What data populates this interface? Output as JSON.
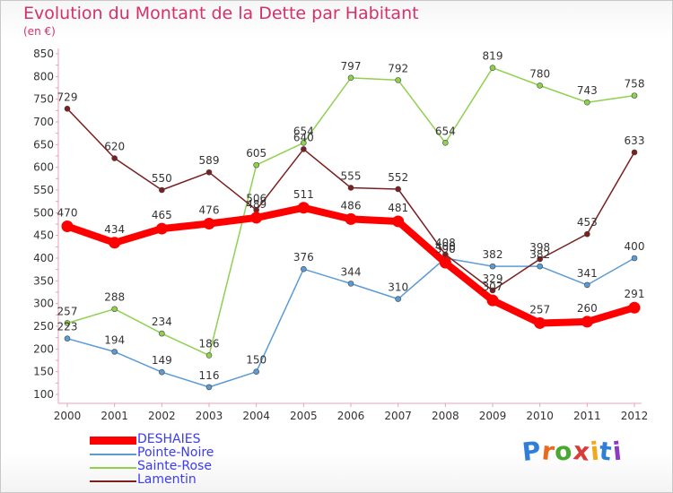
{
  "title": "Evolution du Montant de la Dette par Habitant",
  "subtitle": "(en €)",
  "brand": {
    "text": "Proxiti",
    "letter_colors": [
      "#2f7fd9",
      "#e86a1c",
      "#4aa832",
      "#d93a3a",
      "#f2a81c",
      "#2f7fd9",
      "#8a3cc4"
    ]
  },
  "chart_data": {
    "type": "line",
    "x": [
      2000,
      2001,
      2002,
      2003,
      2004,
      2005,
      2006,
      2007,
      2008,
      2009,
      2010,
      2011,
      2012
    ],
    "ylim": [
      100,
      850
    ],
    "yticks": [
      100,
      150,
      200,
      250,
      300,
      350,
      400,
      450,
      500,
      550,
      600,
      650,
      700,
      750,
      800,
      850
    ],
    "grid": false,
    "legend_position": "bottom-left",
    "series": [
      {
        "name": "DESHAIES",
        "color": "#ff0000",
        "emphasis": true,
        "values": [
          470,
          434,
          465,
          476,
          489,
          511,
          486,
          481,
          390,
          307,
          257,
          260,
          291
        ],
        "labels": [
          "470",
          "434",
          "465",
          "476",
          "489",
          "511",
          "486",
          "481",
          "390",
          "307",
          "257",
          "260",
          "291"
        ]
      },
      {
        "name": "Pointe-Noire",
        "color": "#5b9bd5",
        "values": [
          223,
          194,
          149,
          116,
          150,
          376,
          344,
          310,
          400,
          382,
          382,
          341,
          400
        ],
        "labels": [
          "223",
          "194",
          "149",
          "116",
          "150",
          "376",
          "344",
          "310",
          "400",
          "382",
          "382",
          "341",
          "400"
        ]
      },
      {
        "name": "Sainte-Rose",
        "color": "#8fd14f",
        "values": [
          257,
          288,
          234,
          186,
          605,
          654,
          797,
          792,
          654,
          819,
          780,
          743,
          758
        ],
        "labels": [
          "257",
          "288",
          "234",
          "186",
          "605",
          "654",
          "797",
          "792",
          "654",
          "819",
          "780",
          "743",
          "758"
        ]
      },
      {
        "name": "Lamentin",
        "color": "#7b1f1f",
        "values": [
          729,
          620,
          550,
          589,
          506,
          640,
          555,
          552,
          408,
          329,
          398,
          453,
          633
        ],
        "labels": [
          "729",
          "620",
          "550",
          "589",
          "506",
          "640",
          "555",
          "552",
          "408",
          "329",
          "398",
          "453",
          "633"
        ]
      }
    ]
  }
}
